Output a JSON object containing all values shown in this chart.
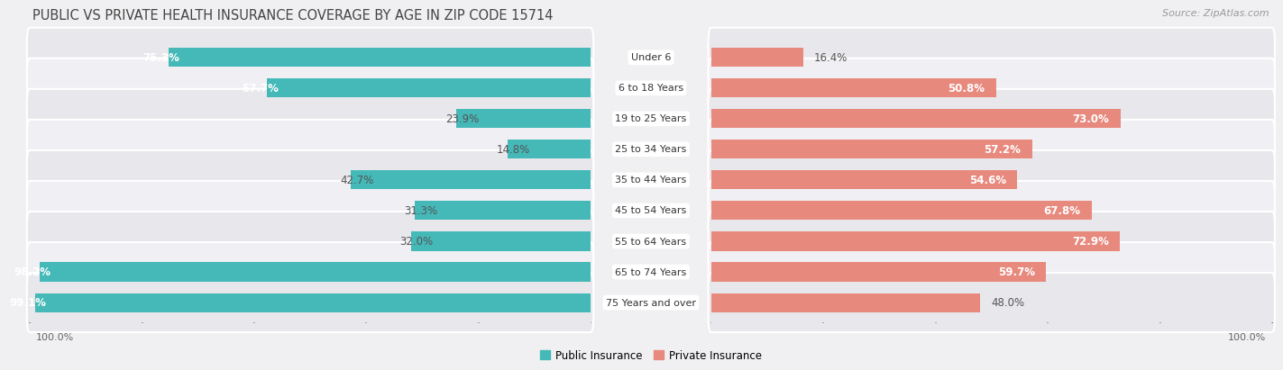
{
  "title": "PUBLIC VS PRIVATE HEALTH INSURANCE COVERAGE BY AGE IN ZIP CODE 15714",
  "source": "Source: ZipAtlas.com",
  "categories": [
    "Under 6",
    "6 to 18 Years",
    "19 to 25 Years",
    "25 to 34 Years",
    "35 to 44 Years",
    "45 to 54 Years",
    "55 to 64 Years",
    "65 to 74 Years",
    "75 Years and over"
  ],
  "public_values": [
    75.3,
    57.7,
    23.9,
    14.8,
    42.7,
    31.3,
    32.0,
    98.2,
    99.1
  ],
  "private_values": [
    16.4,
    50.8,
    73.0,
    57.2,
    54.6,
    67.8,
    72.9,
    59.7,
    48.0
  ],
  "public_color": "#45b8b8",
  "private_color": "#e8897e",
  "bar_height": 0.62,
  "fig_bg": "#f0f0f2",
  "row_bg_even": "#e8e8ec",
  "row_bg_odd": "#f0f0f4",
  "title_fontsize": 10.5,
  "value_fontsize": 8.5,
  "cat_fontsize": 8.0,
  "source_fontsize": 8,
  "legend_fontsize": 8.5,
  "footer_fontsize": 8
}
